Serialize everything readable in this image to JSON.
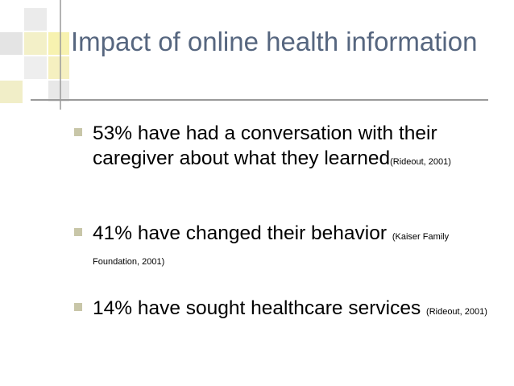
{
  "title": "Impact of online health information",
  "bullets": [
    {
      "text": "53% have had a conversation with their caregiver about what they learned",
      "citation": "(Rideout, 2001)"
    },
    {
      "text": "41% have changed their behavior ",
      "citation": "(Kaiser Family Foundation, 2001)"
    },
    {
      "text": "14% have sought healthcare services ",
      "citation": "(Rideout, 2001)"
    }
  ]
}
